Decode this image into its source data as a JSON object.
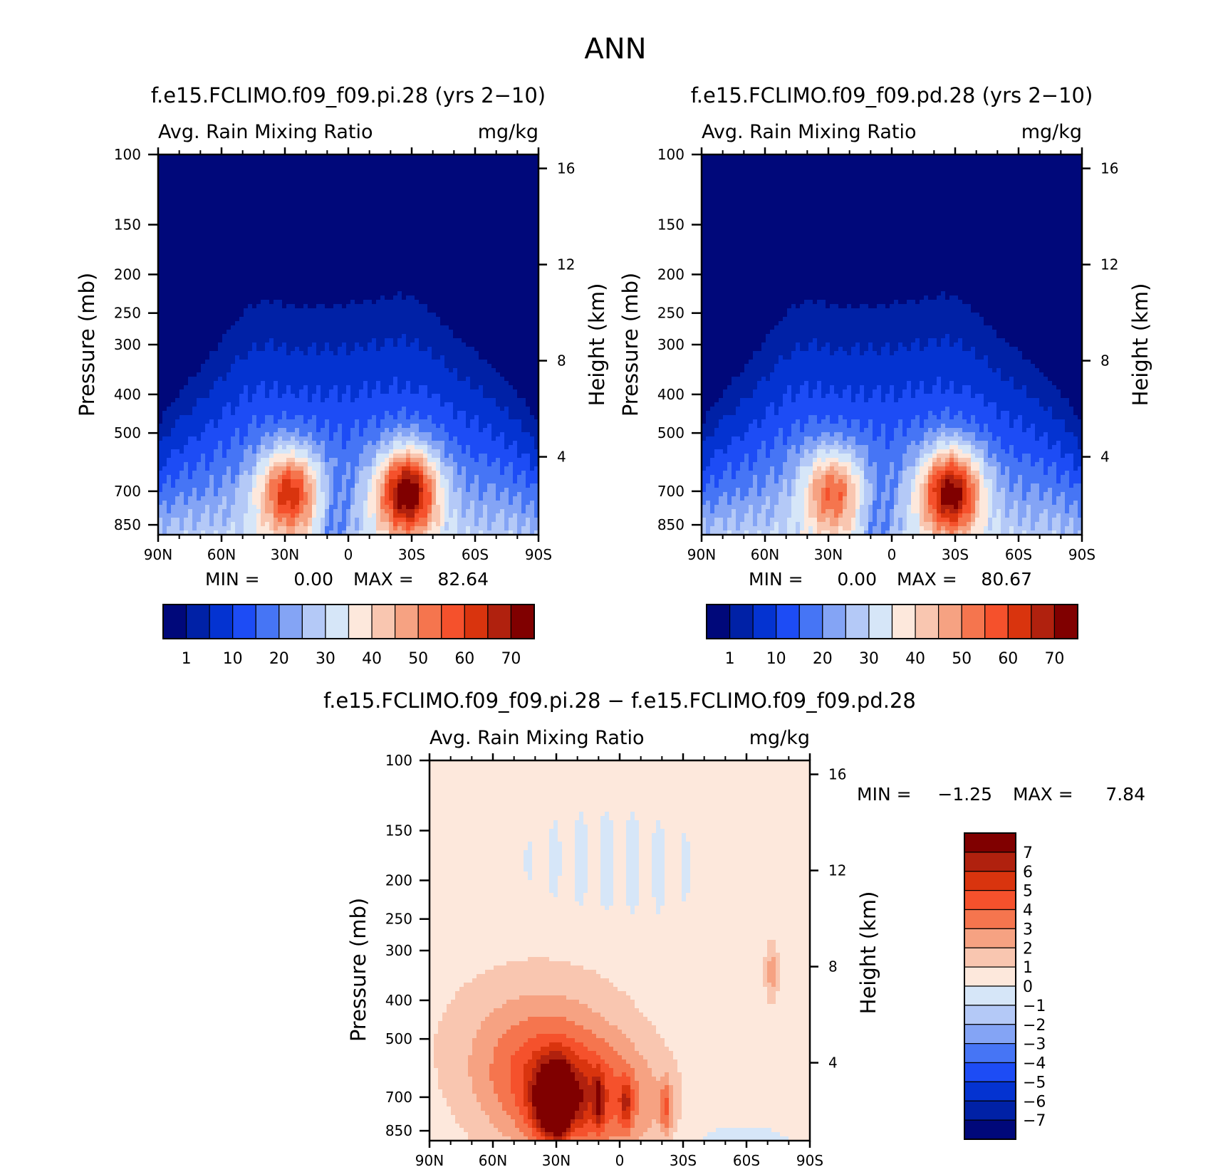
{
  "page_title": "ANN",
  "chart_data": [
    {
      "type": "heatmap",
      "title": "f.e15.FCLIMO.f09_f09.pi.28 (yrs 2−10)",
      "subtitle_left": "Avg. Rain Mixing Ratio",
      "subtitle_right": "mg/kg",
      "ylabel": "Pressure (mb)",
      "y2label": "Height (km)",
      "x_ticks": [
        "90N",
        "60N",
        "30N",
        "0",
        "30S",
        "60S",
        "90S"
      ],
      "y_ticks": [
        "100",
        "150",
        "200",
        "250",
        "300",
        "400",
        "500",
        "700",
        "850"
      ],
      "y_tick_values": [
        100,
        150,
        200,
        250,
        300,
        400,
        500,
        700,
        850
      ],
      "y2_ticks": [
        "16",
        "12",
        "8",
        "4"
      ],
      "ylim": [
        100,
        900
      ],
      "log_y": true,
      "min_text": "MIN =",
      "min_value": "0.00",
      "max_text": "MAX =",
      "max_value": "82.64",
      "colorbar_labels": [
        "1",
        "10",
        "20",
        "30",
        "40",
        "50",
        "60",
        "70"
      ],
      "colorbar_colors": [
        "#00087a",
        "#0021a6",
        "#0433d1",
        "#1d4cf5",
        "#4675f5",
        "#84a4f5",
        "#b4c9f7",
        "#d6e6f8",
        "#fde8dc",
        "#f9c6b0",
        "#f6a282",
        "#f5754e",
        "#f5512c",
        "#d9340e",
        "#b0210e",
        "#800000"
      ],
      "peaks": [
        {
          "lat": -28,
          "pressure": 700,
          "value": 82.64
        },
        {
          "lat": 28,
          "pressure": 700,
          "value": 70
        }
      ]
    },
    {
      "type": "heatmap",
      "title": "f.e15.FCLIMO.f09_f09.pd.28 (yrs 2−10)",
      "subtitle_left": "Avg. Rain Mixing Ratio",
      "subtitle_right": "mg/kg",
      "ylabel": "Pressure (mb)",
      "y2label": "Height (km)",
      "x_ticks": [
        "90N",
        "60N",
        "30N",
        "0",
        "30S",
        "60S",
        "90S"
      ],
      "y_ticks": [
        "100",
        "150",
        "200",
        "250",
        "300",
        "400",
        "500",
        "700",
        "850"
      ],
      "y_tick_values": [
        100,
        150,
        200,
        250,
        300,
        400,
        500,
        700,
        850
      ],
      "y2_ticks": [
        "16",
        "12",
        "8",
        "4"
      ],
      "ylim": [
        100,
        900
      ],
      "log_y": true,
      "min_text": "MIN =",
      "min_value": "0.00",
      "max_text": "MAX =",
      "max_value": "80.67",
      "colorbar_labels": [
        "1",
        "10",
        "20",
        "30",
        "40",
        "50",
        "60",
        "70"
      ],
      "colorbar_colors": [
        "#00087a",
        "#0021a6",
        "#0433d1",
        "#1d4cf5",
        "#4675f5",
        "#84a4f5",
        "#b4c9f7",
        "#d6e6f8",
        "#fde8dc",
        "#f9c6b0",
        "#f6a282",
        "#f5754e",
        "#f5512c",
        "#d9340e",
        "#b0210e",
        "#800000"
      ],
      "peaks": [
        {
          "lat": -28,
          "pressure": 700,
          "value": 80.67
        },
        {
          "lat": 28,
          "pressure": 700,
          "value": 62
        }
      ]
    },
    {
      "type": "heatmap",
      "title": "f.e15.FCLIMO.f09_f09.pi.28 − f.e15.FCLIMO.f09_f09.pd.28",
      "subtitle_left": "Avg. Rain Mixing Ratio",
      "subtitle_right": "mg/kg",
      "ylabel": "Pressure (mb)",
      "y2label": "Height (km)",
      "x_ticks": [
        "90N",
        "60N",
        "30N",
        "0",
        "30S",
        "60S",
        "90S"
      ],
      "y_ticks": [
        "100",
        "150",
        "200",
        "250",
        "300",
        "400",
        "500",
        "700",
        "850"
      ],
      "y_tick_values": [
        100,
        150,
        200,
        250,
        300,
        400,
        500,
        700,
        850
      ],
      "y2_ticks": [
        "16",
        "12",
        "8",
        "4"
      ],
      "ylim": [
        100,
        900
      ],
      "log_y": true,
      "min_text": "MIN =",
      "min_value": "−1.25",
      "max_text": "MAX =",
      "max_value": "7.84",
      "colorbar_labels": [
        "7",
        "6",
        "5",
        "4",
        "3",
        "2",
        "1",
        "0",
        "−1",
        "−2",
        "−3",
        "−4",
        "−5",
        "−6",
        "−7"
      ],
      "colorbar_colors": [
        "#800000",
        "#b0210e",
        "#d9340e",
        "#f5512c",
        "#f5754e",
        "#f6a282",
        "#f9c6b0",
        "#fde8dc",
        "#d6e6f8",
        "#b4c9f7",
        "#84a4f5",
        "#4675f5",
        "#1d4cf5",
        "#0433d1",
        "#0021a6",
        "#00087a"
      ],
      "peaks": [
        {
          "lat": 30,
          "pressure": 720,
          "value": 7.84
        }
      ]
    }
  ]
}
